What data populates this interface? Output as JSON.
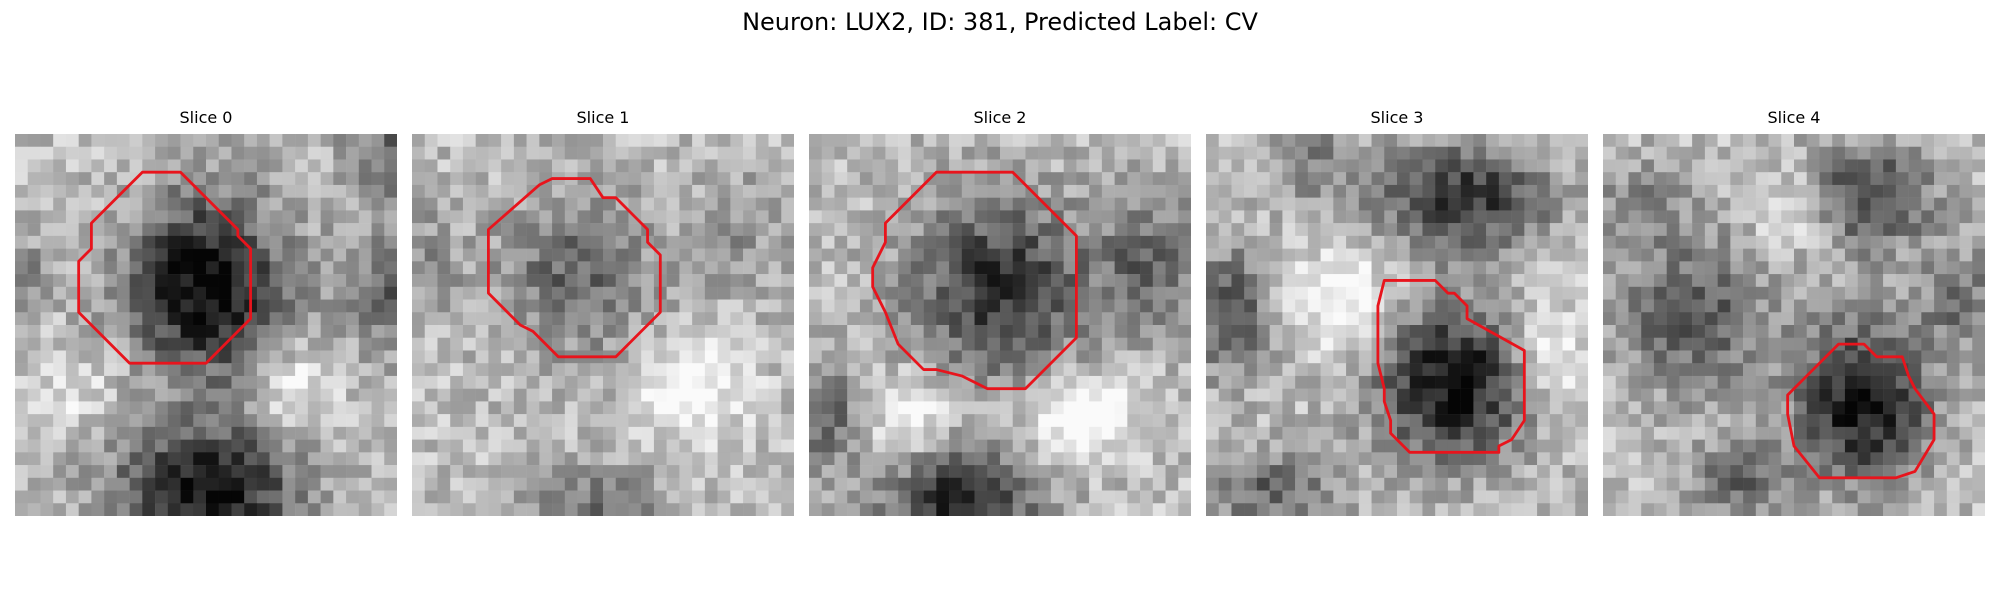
{
  "figure": {
    "title": "Neuron: LUX2, ID: 381, Predicted Label: CV"
  },
  "contour_color": "#e8141c",
  "slices": [
    {
      "title": "Slice 0"
    },
    {
      "title": "Slice 1"
    },
    {
      "title": "Slice 2"
    },
    {
      "title": "Slice 3"
    },
    {
      "title": "Slice 4"
    }
  ]
}
